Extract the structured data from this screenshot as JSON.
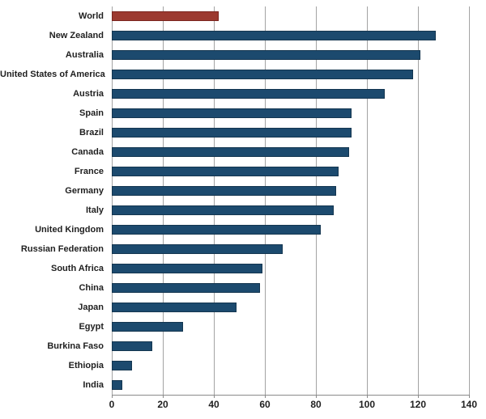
{
  "chart_data": {
    "type": "bar",
    "orientation": "horizontal",
    "title": "",
    "categories": [
      "World",
      "New Zealand",
      "Australia",
      "United States of America",
      "Austria",
      "Spain",
      "Brazil",
      "Canada",
      "France",
      "Germany",
      "Italy",
      "United Kingdom",
      "Russian Federation",
      "South Africa",
      "China",
      "Japan",
      "Egypt",
      "Burkina Faso",
      "Ethiopia",
      "India"
    ],
    "values": [
      42,
      127,
      121,
      118,
      107,
      94,
      94,
      93,
      89,
      88,
      87,
      82,
      67,
      59,
      58,
      49,
      28,
      16,
      8,
      4
    ],
    "highlight_category": "World",
    "xlabel": "",
    "ylabel": "",
    "xlim": [
      0,
      140
    ],
    "xticks": [
      0,
      20,
      40,
      60,
      80,
      100,
      120,
      140
    ],
    "grid": "vertical",
    "legend": "none"
  },
  "colors": {
    "bar_fill": "#1c4a6e",
    "bar_border": "#143650",
    "highlight_fill": "#9c3a30",
    "highlight_border": "#7a251e",
    "gridline": "#a3a3a3",
    "axis_line": "#8a8a8a",
    "label_text": "#1f1f1f",
    "background": "#ffffff"
  }
}
